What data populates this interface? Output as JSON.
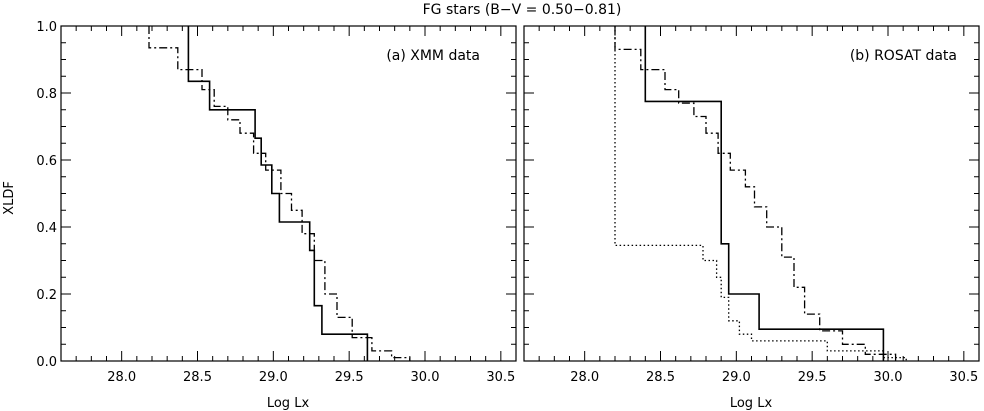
{
  "title": "FG stars (B−V = 0.50−0.81)",
  "chart_data": [
    {
      "type": "line",
      "panel_label": "(a) XMM data",
      "xlabel": "Log Lx",
      "ylabel": "XLDF",
      "xlim": [
        27.6,
        30.6
      ],
      "ylim": [
        0.0,
        1.0
      ],
      "x_ticks": [
        "28.0",
        "28.5",
        "29.0",
        "29.5",
        "30.0",
        "30.5"
      ],
      "y_ticks": [
        "0.0",
        "0.2",
        "0.4",
        "0.6",
        "0.8",
        "1.0"
      ],
      "grid": false,
      "series": [
        {
          "style": "solid",
          "x": [
            28.44,
            28.44,
            28.58,
            28.58,
            28.88,
            28.88,
            28.92,
            28.92,
            28.99,
            28.99,
            29.04,
            29.04,
            29.24,
            29.24,
            29.27,
            29.27,
            29.32,
            29.32,
            29.62,
            29.62
          ],
          "y": [
            1.0,
            0.835,
            0.835,
            0.75,
            0.75,
            0.665,
            0.665,
            0.585,
            0.585,
            0.5,
            0.5,
            0.415,
            0.415,
            0.33,
            0.33,
            0.165,
            0.165,
            0.08,
            0.08,
            0.0
          ]
        },
        {
          "style": "dash-dot",
          "x": [
            28.18,
            28.18,
            28.37,
            28.37,
            28.53,
            28.53,
            28.61,
            28.61,
            28.7,
            28.7,
            28.78,
            28.78,
            28.87,
            28.87,
            28.95,
            28.95,
            29.05,
            29.05,
            29.12,
            29.12,
            29.19,
            29.19,
            29.27,
            29.27,
            29.34,
            29.34,
            29.42,
            29.42,
            29.52,
            29.52,
            29.65,
            29.65,
            29.78,
            29.78,
            29.9,
            29.9
          ],
          "y": [
            1.0,
            0.935,
            0.935,
            0.87,
            0.87,
            0.81,
            0.81,
            0.76,
            0.76,
            0.72,
            0.72,
            0.68,
            0.68,
            0.62,
            0.62,
            0.57,
            0.57,
            0.5,
            0.5,
            0.45,
            0.45,
            0.38,
            0.38,
            0.3,
            0.3,
            0.2,
            0.2,
            0.13,
            0.13,
            0.07,
            0.07,
            0.03,
            0.03,
            0.01,
            0.01,
            0.0
          ]
        }
      ]
    },
    {
      "type": "line",
      "panel_label": "(b) ROSAT data",
      "xlabel": "Log Lx",
      "ylabel": "",
      "xlim": [
        27.6,
        30.6
      ],
      "ylim": [
        0.0,
        1.0
      ],
      "x_ticks": [
        "28.0",
        "28.5",
        "29.0",
        "29.5",
        "30.0",
        "30.5"
      ],
      "y_ticks": [],
      "grid": false,
      "series": [
        {
          "style": "solid",
          "x": [
            28.4,
            28.4,
            28.9,
            28.9,
            28.95,
            28.95,
            29.15,
            29.15,
            29.97,
            29.97
          ],
          "y": [
            1.0,
            0.775,
            0.775,
            0.35,
            0.35,
            0.2,
            0.2,
            0.095,
            0.095,
            0.0
          ]
        },
        {
          "style": "dash-dot",
          "x": [
            28.2,
            28.2,
            28.37,
            28.37,
            28.53,
            28.53,
            28.62,
            28.62,
            28.72,
            28.72,
            28.8,
            28.8,
            28.88,
            28.88,
            28.96,
            28.96,
            29.06,
            29.06,
            29.12,
            29.12,
            29.2,
            29.2,
            29.3,
            29.3,
            29.38,
            29.38,
            29.45,
            29.45,
            29.55,
            29.55,
            29.7,
            29.7,
            29.85,
            29.85,
            30.05,
            30.05
          ],
          "y": [
            1.0,
            0.93,
            0.93,
            0.87,
            0.87,
            0.81,
            0.81,
            0.77,
            0.77,
            0.73,
            0.73,
            0.68,
            0.68,
            0.62,
            0.62,
            0.57,
            0.57,
            0.52,
            0.52,
            0.46,
            0.46,
            0.4,
            0.4,
            0.31,
            0.31,
            0.22,
            0.22,
            0.14,
            0.14,
            0.09,
            0.09,
            0.05,
            0.05,
            0.02,
            0.02,
            0.0
          ]
        },
        {
          "style": "dotted",
          "x": [
            28.2,
            28.2,
            28.78,
            28.78,
            28.87,
            28.87,
            28.9,
            28.9,
            28.95,
            28.95,
            29.02,
            29.02,
            29.1,
            29.1,
            29.6,
            29.6,
            29.97,
            29.97,
            30.12,
            30.12
          ],
          "y": [
            1.0,
            0.345,
            0.345,
            0.3,
            0.3,
            0.25,
            0.25,
            0.19,
            0.19,
            0.12,
            0.12,
            0.08,
            0.08,
            0.06,
            0.06,
            0.03,
            0.03,
            0.01,
            0.01,
            0.0
          ]
        }
      ]
    }
  ]
}
